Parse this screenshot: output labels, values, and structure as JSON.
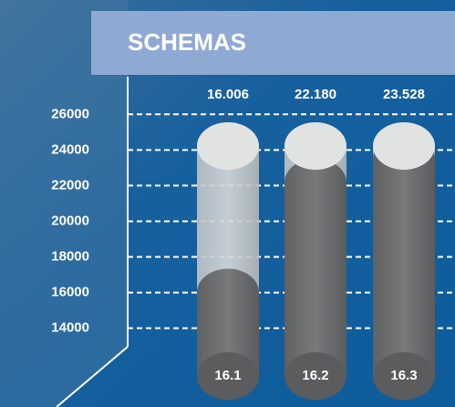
{
  "chart_data": {
    "type": "cylinder",
    "title": "SCHEMAS",
    "categories": [
      "16.1",
      "16.2",
      "16.3"
    ],
    "values": [
      16006,
      22180,
      23528
    ],
    "value_labels": [
      "16.006",
      "22.180",
      "23.528"
    ],
    "color": "#6f7173",
    "ylim": [
      10400,
      27500
    ],
    "yticks": [
      14000,
      16000,
      18000,
      20000,
      22000,
      24000,
      26000
    ],
    "grid": true
  }
}
